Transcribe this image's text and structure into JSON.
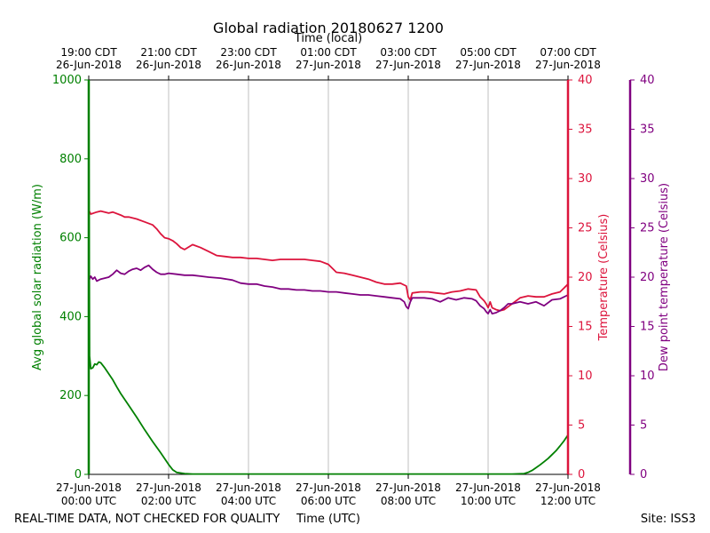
{
  "chart_data": {
    "type": "line",
    "title": "Global radiation 20180627 1200",
    "top_axis_label": "Time (local)",
    "xlabel": "Time (UTC)",
    "left_ylabel": "Avg global solar radiation (W/m)",
    "right_ylabel": "Temperature (Celsius)",
    "far_right_ylabel": "Dew point temperature (Celsius)",
    "footer_left": "REAL-TIME DATA, NOT CHECKED FOR QUALITY",
    "footer_right": "Site: ISS3",
    "xlim": [
      0,
      12
    ],
    "grid_x": true,
    "bottom_ticks": [
      {
        "x": 0,
        "line1": "27-Jun-2018",
        "line2": "00:00 UTC"
      },
      {
        "x": 2,
        "line1": "27-Jun-2018",
        "line2": "02:00 UTC"
      },
      {
        "x": 4,
        "line1": "27-Jun-2018",
        "line2": "04:00 UTC"
      },
      {
        "x": 6,
        "line1": "27-Jun-2018",
        "line2": "06:00 UTC"
      },
      {
        "x": 8,
        "line1": "27-Jun-2018",
        "line2": "08:00 UTC"
      },
      {
        "x": 10,
        "line1": "27-Jun-2018",
        "line2": "10:00 UTC"
      },
      {
        "x": 12,
        "line1": "27-Jun-2018",
        "line2": "12:00 UTC"
      }
    ],
    "top_ticks": [
      {
        "x": 0,
        "line1": "19:00 CDT",
        "line2": "26-Jun-2018"
      },
      {
        "x": 2,
        "line1": "21:00 CDT",
        "line2": "26-Jun-2018"
      },
      {
        "x": 4,
        "line1": "23:00 CDT",
        "line2": "26-Jun-2018"
      },
      {
        "x": 6,
        "line1": "01:00 CDT",
        "line2": "27-Jun-2018"
      },
      {
        "x": 8,
        "line1": "03:00 CDT",
        "line2": "27-Jun-2018"
      },
      {
        "x": 10,
        "line1": "05:00 CDT",
        "line2": "27-Jun-2018"
      },
      {
        "x": 12,
        "line1": "07:00 CDT",
        "line2": "27-Jun-2018"
      }
    ],
    "left_axis": {
      "ylim": [
        0,
        1000
      ],
      "ticks": [
        0,
        200,
        400,
        600,
        800,
        1000
      ],
      "color": "#008000"
    },
    "right_axis": {
      "ylim": [
        0,
        40
      ],
      "ticks": [
        0,
        5,
        10,
        15,
        20,
        25,
        30,
        35,
        40
      ],
      "color": "#dc143c"
    },
    "far_right_axis": {
      "ylim": [
        0,
        40
      ],
      "ticks": [
        0,
        5,
        10,
        15,
        20,
        25,
        30,
        35,
        40
      ],
      "color": "#800080"
    },
    "series": [
      {
        "name": "Global radiation",
        "axis": "left",
        "color": "#008000",
        "x": [
          0,
          0.02,
          0.05,
          0.1,
          0.15,
          0.2,
          0.25,
          0.3,
          0.4,
          0.5,
          0.6,
          0.7,
          0.8,
          1.0,
          1.2,
          1.4,
          1.6,
          1.8,
          1.9,
          2.0,
          2.1,
          2.2,
          2.4,
          2.6,
          3,
          4,
          5,
          6,
          7,
          8,
          9,
          10,
          10.6,
          10.9,
          11.0,
          11.1,
          11.2,
          11.3,
          11.4,
          11.5,
          11.6,
          11.7,
          11.8,
          11.9,
          12.0
        ],
        "values": [
          1000,
          300,
          268,
          270,
          280,
          278,
          285,
          283,
          270,
          255,
          240,
          222,
          205,
          175,
          145,
          113,
          83,
          55,
          40,
          25,
          12,
          5,
          2,
          1,
          1,
          1,
          1,
          1,
          1,
          1,
          1,
          1,
          1,
          2,
          5,
          10,
          17,
          24,
          32,
          40,
          50,
          60,
          72,
          85,
          100
        ]
      },
      {
        "name": "Temperature",
        "axis": "right",
        "color": "#dc143c",
        "x": [
          0,
          0.05,
          0.2,
          0.3,
          0.5,
          0.6,
          0.8,
          0.9,
          1.0,
          1.2,
          1.4,
          1.6,
          1.7,
          1.8,
          1.9,
          2.0,
          2.1,
          2.2,
          2.3,
          2.4,
          2.6,
          2.8,
          3.0,
          3.2,
          3.4,
          3.6,
          3.8,
          4.0,
          4.2,
          4.4,
          4.6,
          4.8,
          5.0,
          5.2,
          5.4,
          5.6,
          5.8,
          6.0,
          6.2,
          6.4,
          6.6,
          6.8,
          7.0,
          7.2,
          7.4,
          7.6,
          7.8,
          7.95,
          8.0,
          8.05,
          8.1,
          8.3,
          8.5,
          8.7,
          8.9,
          9.1,
          9.3,
          9.5,
          9.7,
          9.8,
          9.9,
          9.95,
          10.0,
          10.05,
          10.1,
          10.2,
          10.3,
          10.4,
          10.5,
          10.6,
          10.8,
          11.0,
          11.2,
          11.4,
          11.6,
          11.8,
          12.0
        ],
        "values": [
          26.8,
          26.4,
          26.6,
          26.7,
          26.5,
          26.6,
          26.3,
          26.1,
          26.1,
          25.9,
          25.6,
          25.3,
          24.9,
          24.4,
          24.0,
          23.9,
          23.7,
          23.4,
          23.0,
          22.8,
          23.3,
          23.0,
          22.6,
          22.2,
          22.1,
          22.0,
          22.0,
          21.9,
          21.9,
          21.8,
          21.7,
          21.8,
          21.8,
          21.8,
          21.8,
          21.7,
          21.6,
          21.3,
          20.5,
          20.4,
          20.2,
          20.0,
          19.8,
          19.5,
          19.3,
          19.3,
          19.4,
          19.1,
          18.0,
          17.7,
          18.4,
          18.5,
          18.5,
          18.4,
          18.3,
          18.5,
          18.6,
          18.8,
          18.7,
          18.0,
          17.6,
          17.3,
          16.9,
          17.5,
          16.9,
          16.7,
          16.6,
          16.7,
          17.0,
          17.3,
          17.9,
          18.1,
          18.0,
          18.0,
          18.3,
          18.5,
          19.3
        ]
      },
      {
        "name": "Dew point",
        "axis": "far_right",
        "color": "#800080",
        "x": [
          0,
          0.05,
          0.1,
          0.15,
          0.2,
          0.3,
          0.4,
          0.5,
          0.6,
          0.7,
          0.8,
          0.9,
          1.0,
          1.1,
          1.2,
          1.3,
          1.4,
          1.5,
          1.6,
          1.7,
          1.8,
          1.9,
          2.0,
          2.2,
          2.4,
          2.6,
          2.8,
          3.0,
          3.3,
          3.6,
          3.8,
          4.0,
          4.2,
          4.4,
          4.6,
          4.8,
          5.0,
          5.2,
          5.4,
          5.6,
          5.8,
          6.0,
          6.2,
          6.4,
          6.6,
          6.8,
          7.0,
          7.2,
          7.4,
          7.6,
          7.8,
          7.9,
          7.95,
          8.0,
          8.05,
          8.1,
          8.2,
          8.4,
          8.6,
          8.8,
          9.0,
          9.2,
          9.4,
          9.6,
          9.7,
          9.8,
          9.9,
          9.95,
          10.0,
          10.05,
          10.1,
          10.2,
          10.3,
          10.4,
          10.5,
          10.6,
          10.8,
          11.0,
          11.2,
          11.4,
          11.6,
          11.8,
          12.0
        ],
        "values": [
          19.6,
          20.1,
          19.8,
          20.0,
          19.6,
          19.8,
          19.9,
          20.0,
          20.3,
          20.7,
          20.4,
          20.3,
          20.6,
          20.8,
          20.9,
          20.7,
          21.0,
          21.2,
          20.8,
          20.5,
          20.3,
          20.3,
          20.4,
          20.3,
          20.2,
          20.2,
          20.1,
          20.0,
          19.9,
          19.7,
          19.4,
          19.3,
          19.3,
          19.1,
          19.0,
          18.8,
          18.8,
          18.7,
          18.7,
          18.6,
          18.6,
          18.5,
          18.5,
          18.4,
          18.3,
          18.2,
          18.2,
          18.1,
          18.0,
          17.9,
          17.8,
          17.5,
          17.0,
          16.8,
          17.5,
          17.9,
          17.9,
          17.9,
          17.8,
          17.5,
          17.9,
          17.7,
          17.9,
          17.8,
          17.6,
          17.1,
          16.8,
          16.5,
          16.3,
          16.7,
          16.3,
          16.4,
          16.6,
          16.9,
          17.3,
          17.3,
          17.5,
          17.3,
          17.5,
          17.1,
          17.7,
          17.8,
          18.2
        ]
      }
    ]
  }
}
